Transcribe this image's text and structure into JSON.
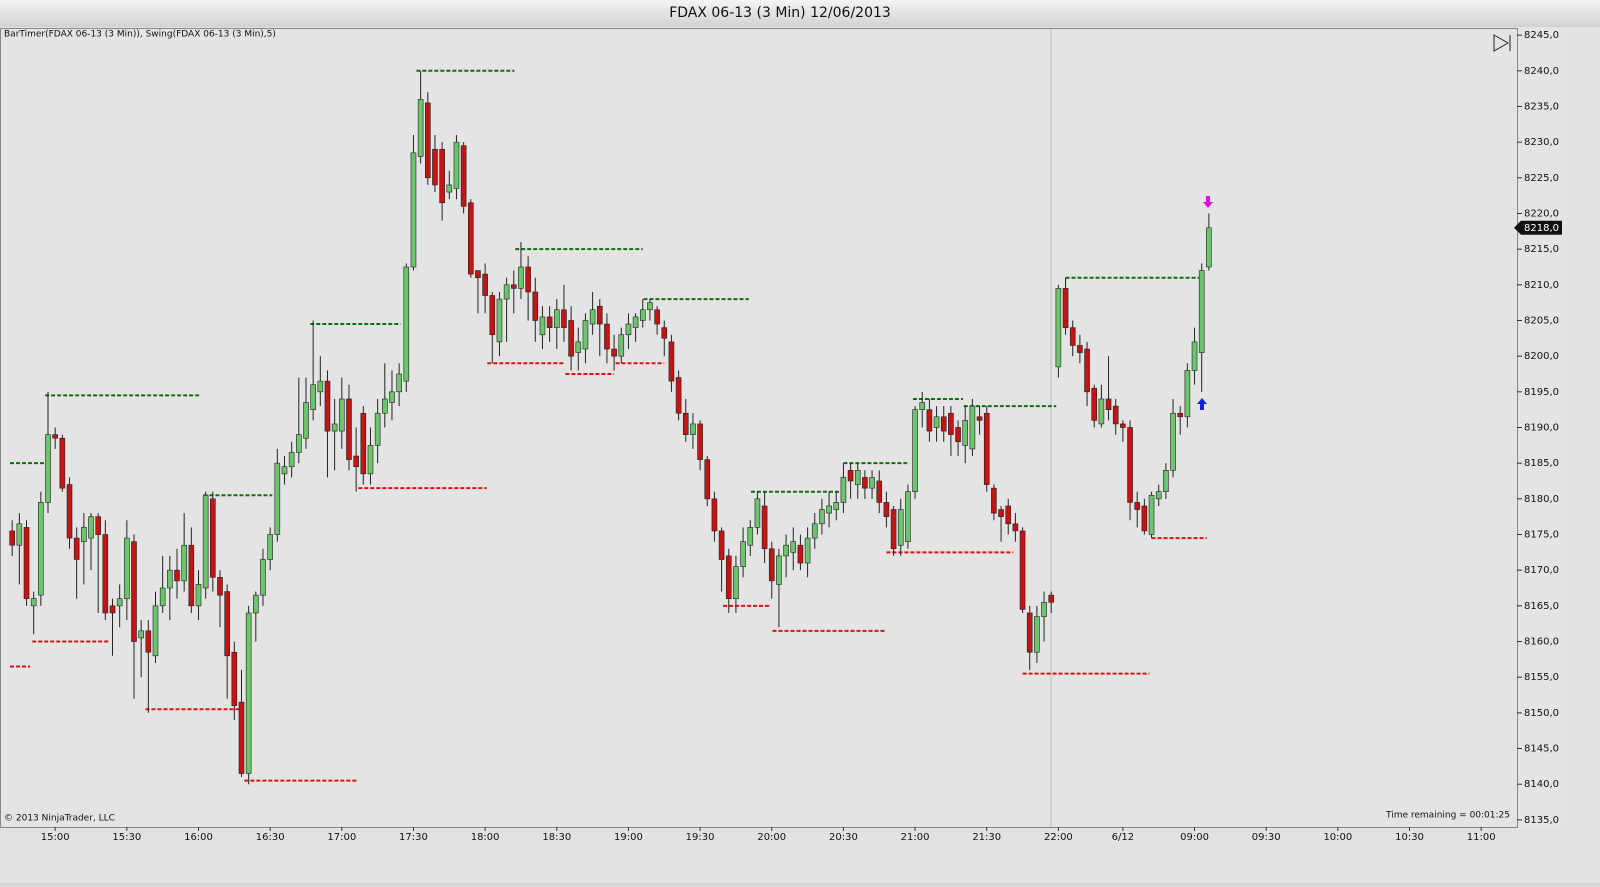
{
  "chart_data": {
    "type": "candlestick",
    "title": "FDAX 06-13 (3 Min)  12/06/2013",
    "indicator_label": "BarTimer(FDAX 06-13 (3 Min)), Swing(FDAX 06-13 (3 Min),5)",
    "copyright": "© 2013 NinjaTrader, LLC",
    "time_remaining": "Time remaining = 00:01:25",
    "up_color": "#6cc46c",
    "down_color": "#c41414",
    "swing_high_color": "#107010",
    "swing_low_color": "#e01010",
    "ylim": [
      8134,
      8246
    ],
    "yticks": [
      {
        "value": 8135,
        "label": "8135,0"
      },
      {
        "value": 8140,
        "label": "8140,0"
      },
      {
        "value": 8145,
        "label": "8145,0"
      },
      {
        "value": 8150,
        "label": "8150,0"
      },
      {
        "value": 8155,
        "label": "8155,0"
      },
      {
        "value": 8160,
        "label": "8160,0"
      },
      {
        "value": 8165,
        "label": "8165,0"
      },
      {
        "value": 8170,
        "label": "8170,0"
      },
      {
        "value": 8175,
        "label": "8175,0"
      },
      {
        "value": 8180,
        "label": "8180,0"
      },
      {
        "value": 8185,
        "label": "8185,0"
      },
      {
        "value": 8190,
        "label": "8190,0"
      },
      {
        "value": 8195,
        "label": "8195,0"
      },
      {
        "value": 8200,
        "label": "8200,0"
      },
      {
        "value": 8205,
        "label": "8205,0"
      },
      {
        "value": 8210,
        "label": "8210,0"
      },
      {
        "value": 8215,
        "label": "8215,0"
      },
      {
        "value": 8220,
        "label": "8220,0"
      },
      {
        "value": 8225,
        "label": "8225,0"
      },
      {
        "value": 8230,
        "label": "8230,0"
      },
      {
        "value": 8235,
        "label": "8235,0"
      },
      {
        "value": 8240,
        "label": "8240,0"
      },
      {
        "value": 8245,
        "label": "8245,0"
      }
    ],
    "xlim": [
      -1.7,
      210
    ],
    "xticks": [
      {
        "value": 6,
        "label": "15:00"
      },
      {
        "value": 16,
        "label": "15:30"
      },
      {
        "value": 26,
        "label": "16:00"
      },
      {
        "value": 36,
        "label": "16:30"
      },
      {
        "value": 46,
        "label": "17:00"
      },
      {
        "value": 56,
        "label": "17:30"
      },
      {
        "value": 66,
        "label": "18:00"
      },
      {
        "value": 76,
        "label": "18:30"
      },
      {
        "value": 86,
        "label": "19:00"
      },
      {
        "value": 96,
        "label": "19:30"
      },
      {
        "value": 106,
        "label": "20:00"
      },
      {
        "value": 116,
        "label": "20:30"
      },
      {
        "value": 126,
        "label": "21:00"
      },
      {
        "value": 136,
        "label": "21:30"
      },
      {
        "value": 146,
        "label": "22:00"
      },
      {
        "value": 155,
        "label": "6/12"
      },
      {
        "value": 165,
        "label": "09:00"
      },
      {
        "value": 175,
        "label": "09:30"
      },
      {
        "value": 185,
        "label": "10:00"
      },
      {
        "value": 195,
        "label": "10:30"
      },
      {
        "value": 205,
        "label": "11:00"
      }
    ],
    "last_price": {
      "value": 8218,
      "label": "8218,0"
    },
    "open": [
      8175.5,
      8173.5,
      8176,
      8165,
      8166.5,
      8179.5,
      8189,
      8188.5,
      8182,
      8174.5,
      8174,
      8174.5,
      8177.5,
      8175,
      8165,
      8165,
      8166,
      8174,
      8160.5,
      8161.5,
      8158,
      8165,
      8167.5,
      8170,
      8168.5,
      8173.5,
      8165,
      8167.5,
      8180,
      8169,
      8167,
      8158.5,
      8151.5,
      8141.5,
      8164,
      8166.5,
      8171.5,
      8175,
      8183.5,
      8184.5,
      8186.5,
      8188.5,
      8192.5,
      8195,
      8196.5,
      8189.5,
      8189.5,
      8194,
      8186,
      8192,
      8183.5,
      8187.5,
      8192,
      8193.5,
      8195,
      8196.5,
      8212.5,
      8228,
      8235.5,
      8229,
      8229,
      8223,
      8223.5,
      8229.5,
      8221.5,
      8212,
      8211.5,
      8208.5,
      8202,
      8208,
      8210,
      8209.5,
      8212.5,
      8209,
      8203,
      8205.5,
      8204,
      8206.5,
      8205,
      8200.5,
      8201,
      8204.5,
      8207,
      8204.5,
      8201,
      8200,
      8203,
      8204,
      8205,
      8206.5,
      8206.5,
      8204,
      8202,
      8197,
      8192,
      8189,
      8190.5,
      8185.5,
      8180,
      8175.5,
      8172,
      8166,
      8170.5,
      8173.5,
      8176,
      8179,
      8173,
      8168,
      8172,
      8172.5,
      8173.5,
      8171,
      8174.5,
      8176.5,
      8178,
      8178.5,
      8179.5,
      8184,
      8182,
      8183,
      8181.5,
      8182.5,
      8179.5,
      8178.5,
      8173.5,
      8174,
      8181,
      8192.5,
      8192.5,
      8190,
      8191.5,
      8192,
      8190,
      8187.5,
      8187,
      8191.5,
      8192,
      8181.5,
      8178.5,
      8179,
      8176.5,
      8175.5,
      8164,
      8158.5,
      8163.5,
      8166.5,
      8198.5,
      8209.5,
      8204,
      8201.5,
      8201,
      8195.5,
      8190.5,
      8194,
      8193,
      8190.5,
      8190,
      8179.5,
      8179,
      8175,
      8180,
      8181,
      8184,
      8192,
      8191.5,
      8198,
      8200.5,
      8212.5
    ],
    "high": [
      8177,
      8178,
      8177,
      8167,
      8181,
      8195,
      8190,
      8189,
      8183,
      8176,
      8178,
      8178,
      8178,
      8177,
      8166,
      8168,
      8177,
      8175,
      8163,
      8163,
      8167,
      8172,
      8172,
      8173,
      8178,
      8176,
      8170,
      8181,
      8181,
      8170,
      8168,
      8160,
      8156,
      8165,
      8167,
      8173,
      8176,
      8187,
      8186,
      8188,
      8197,
      8197,
      8205,
      8200,
      8198,
      8194,
      8197,
      8196,
      8190,
      8193,
      8190,
      8194,
      8199,
      8198,
      8199,
      8213,
      8231,
      8240,
      8237,
      8231,
      8230,
      8226,
      8231,
      8230,
      8222,
      8212,
      8213,
      8209,
      8209,
      8211,
      8212,
      8216,
      8214,
      8211,
      8207,
      8207,
      8208,
      8210,
      8207,
      8204,
      8206,
      8209,
      8208,
      8206,
      8203,
      8204,
      8206,
      8206,
      8208,
      8208,
      8207,
      8205,
      8203,
      8198,
      8194,
      8192,
      8191,
      8186,
      8181,
      8176,
      8173,
      8172,
      8176,
      8177,
      8181,
      8181,
      8174,
      8173,
      8175,
      8176,
      8175,
      8176,
      8178,
      8180,
      8181,
      8181,
      8185,
      8185,
      8185,
      8184,
      8184,
      8184,
      8181,
      8179,
      8180,
      8182,
      8193,
      8195,
      8194,
      8193,
      8193,
      8193,
      8191,
      8193,
      8194,
      8193,
      8193,
      8182,
      8179,
      8180,
      8178,
      8176,
      8165,
      8165,
      8167,
      8167,
      8210,
      8211,
      8205,
      8203,
      8202,
      8196,
      8196,
      8200,
      8194,
      8191,
      8191,
      8181,
      8180,
      8181,
      8182,
      8185,
      8194,
      8193,
      8199,
      8204,
      8213,
      8220
    ],
    "low": [
      8172,
      8168,
      8165,
      8161,
      8165,
      8178,
      8187,
      8181,
      8173,
      8166,
      8168,
      8170,
      8164,
      8163,
      8158,
      8162,
      8163,
      8152,
      8155,
      8150,
      8157,
      8164,
      8163,
      8166,
      8167,
      8164,
      8163,
      8166,
      8167,
      8162,
      8152,
      8149,
      8141,
      8140,
      8160,
      8165,
      8170,
      8174,
      8182,
      8183,
      8185,
      8187,
      8191,
      8193,
      8183,
      8184,
      8187,
      8184,
      8181,
      8182,
      8182,
      8185,
      8190,
      8191,
      8193,
      8195,
      8212,
      8227,
      8224,
      8223,
      8219,
      8222,
      8222,
      8220,
      8211,
      8206,
      8206,
      8199,
      8200,
      8202,
      8206,
      8208,
      8205,
      8202,
      8201,
      8202,
      8201,
      8202,
      8198,
      8198,
      8199,
      8203,
      8200,
      8199,
      8198,
      8199,
      8201,
      8202,
      8204,
      8205,
      8203,
      8200,
      8195,
      8191,
      8188,
      8187,
      8184,
      8179,
      8174,
      8167,
      8164,
      8164,
      8169,
      8172,
      8175,
      8171,
      8166,
      8162,
      8169,
      8170,
      8170,
      8169,
      8173,
      8175,
      8176,
      8177,
      8178,
      8180,
      8180,
      8180,
      8180,
      8178,
      8176,
      8172,
      8172,
      8173,
      8180,
      8190,
      8188,
      8188,
      8188,
      8186,
      8186,
      8185,
      8186,
      8189,
      8181,
      8177,
      8174,
      8175,
      8174,
      8164,
      8156,
      8157,
      8160,
      8164,
      8197,
      8203,
      8200,
      8199,
      8193,
      8190,
      8190,
      8191,
      8189,
      8188,
      8177,
      8176,
      8175,
      8174.5,
      8179,
      8180,
      8183,
      8189,
      8190,
      8196,
      8195,
      8212
    ],
    "close": [
      8173.5,
      8176.5,
      8166,
      8166,
      8179.5,
      8189,
      8188.5,
      8181.5,
      8174.5,
      8171.5,
      8176,
      8177.5,
      8175,
      8164,
      8164,
      8166,
      8174.5,
      8160,
      8161.5,
      8158.5,
      8165,
      8167.5,
      8170,
      8168.5,
      8173.5,
      8165,
      8168,
      8180.5,
      8169,
      8166.5,
      8158,
      8151,
      8141.5,
      8164,
      8166.5,
      8171.5,
      8175,
      8185,
      8184.5,
      8186.5,
      8189,
      8193.5,
      8196,
      8196.5,
      8189.5,
      8190.5,
      8194,
      8185.5,
      8184.5,
      8183.5,
      8187.5,
      8192,
      8194,
      8195,
      8197.5,
      8212.5,
      8228.5,
      8236,
      8225,
      8224,
      8221.5,
      8224,
      8230,
      8221,
      8211.5,
      8211,
      8208.5,
      8203,
      8208,
      8210,
      8209.5,
      8212.5,
      8209,
      8205,
      8205.5,
      8204,
      8206.5,
      8204,
      8200,
      8202,
      8205,
      8206.5,
      8204.5,
      8201,
      8200,
      8203,
      8204.5,
      8205.5,
      8206.5,
      8207.5,
      8204.5,
      8202.5,
      8196.5,
      8192,
      8189,
      8190.5,
      8185.5,
      8180,
      8175.5,
      8171.5,
      8166,
      8170.5,
      8174,
      8176,
      8180,
      8173,
      8168.5,
      8172,
      8173.5,
      8174,
      8171,
      8174.5,
      8176.5,
      8178.5,
      8179,
      8179.5,
      8183,
      8182.5,
      8184,
      8181.5,
      8183,
      8179.5,
      8177.5,
      8173,
      8178.5,
      8181,
      8192.5,
      8193.5,
      8189.5,
      8191.5,
      8189.5,
      8189,
      8188,
      8191,
      8193,
      8191,
      8182,
      8178,
      8177.5,
      8176.5,
      8175.5,
      8164.5,
      8158.5,
      8163.5,
      8165.5,
      8165.5,
      8209.5,
      8204,
      8201.5,
      8200.5,
      8195,
      8191,
      8194,
      8192.5,
      8190.5,
      8190,
      8179.5,
      8178.5,
      8175.5,
      8180.5,
      8181,
      8184,
      8192,
      8191.5,
      8198,
      8202,
      8212,
      8218
    ],
    "swing_highs": [
      {
        "value": 8185,
        "from": -0.3,
        "to": 4.5
      },
      {
        "value": 8194.5,
        "from": 4.6,
        "to": 26.3
      },
      {
        "value": 8180.5,
        "from": 26.7,
        "to": 36.3
      },
      {
        "value": 8204.5,
        "from": 41.6,
        "to": 54.2
      },
      {
        "value": 8240,
        "from": 56.4,
        "to": 70.1
      },
      {
        "value": 8215,
        "from": 70.2,
        "to": 88
      },
      {
        "value": 8208,
        "from": 88.1,
        "to": 102.8
      },
      {
        "value": 8181,
        "from": 103.1,
        "to": 115.4
      },
      {
        "value": 8185,
        "from": 116,
        "to": 124.9
      },
      {
        "value": 8194,
        "from": 125.7,
        "to": 132.7
      },
      {
        "value": 8193,
        "from": 132.8,
        "to": 145.7
      },
      {
        "value": 8211,
        "from": 147,
        "to": 166
      }
    ],
    "swing_lows": [
      {
        "value": 8156.5,
        "from": -0.3,
        "to": 2.5
      },
      {
        "value": 8160,
        "from": 2.8,
        "to": 13.4
      },
      {
        "value": 8150.5,
        "from": 18.6,
        "to": 32
      },
      {
        "value": 8140.5,
        "from": 32.4,
        "to": 48.2
      },
      {
        "value": 8181.5,
        "from": 48.3,
        "to": 66.2
      },
      {
        "value": 8199,
        "from": 66.3,
        "to": 77.1
      },
      {
        "value": 8197.5,
        "from": 77.2,
        "to": 84
      },
      {
        "value": 8199,
        "from": 84.2,
        "to": 91
      },
      {
        "value": 8165,
        "from": 99.2,
        "to": 105.9
      },
      {
        "value": 8161.5,
        "from": 106.1,
        "to": 121.8
      },
      {
        "value": 8172.5,
        "from": 122,
        "to": 139.7
      },
      {
        "value": 8155.5,
        "from": 141,
        "to": 158.7
      },
      {
        "value": 8174.5,
        "from": 159,
        "to": 166.7
      }
    ]
  }
}
